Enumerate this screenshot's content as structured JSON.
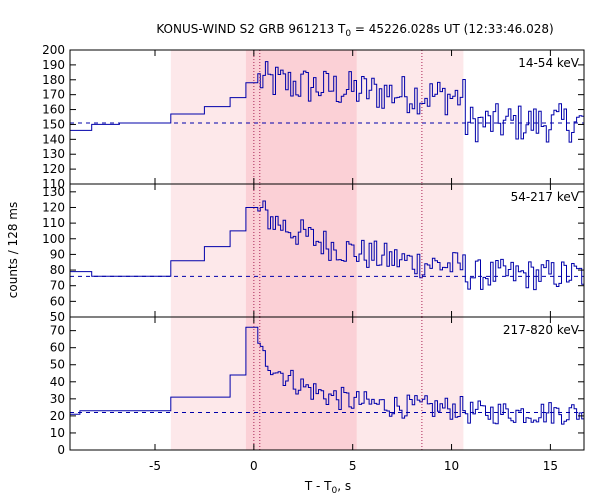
{
  "chart_data": {
    "type": "line",
    "title": "KONUS-WIND S2 GRB 961213 T",
    "title_sub": "0",
    "title_rest": " = 45226.028s UT (12:33:46.028)",
    "xlabel": "T - T",
    "xlabel_sub": "0",
    "xlabel_rest": ", s",
    "ylabel": "counts / 128 ms",
    "xlim": [
      -9.3,
      16.7
    ],
    "x_ticks": [
      -5,
      0,
      5,
      10,
      15
    ],
    "x_tick_labels": [
      "-5",
      "0",
      "5",
      "10",
      "15"
    ],
    "shaded_regions": [
      {
        "x": [
          -4.2,
          10.6
        ],
        "color": "#fde8ea"
      },
      {
        "x": [
          -0.4,
          5.2
        ],
        "color": "#fbd0d6"
      }
    ],
    "vertical_markers": [
      0.0,
      0.3,
      8.5
    ],
    "line_color": "#0000aa",
    "background_color": "#ffffff",
    "panels": [
      {
        "name": "14-54 keV",
        "ylim": [
          110,
          200
        ],
        "y_ticks": [
          110,
          120,
          130,
          140,
          150,
          160,
          170,
          180,
          190,
          200
        ],
        "y_tick_labels": [
          "110",
          "120",
          "130",
          "140",
          "150",
          "160",
          "170",
          "180",
          "190",
          "200"
        ],
        "background_level": 151,
        "steps": [
          [
            -9.3,
            146
          ],
          [
            -8.2,
            150
          ],
          [
            -6.8,
            151
          ],
          [
            -4.2,
            157
          ],
          [
            -2.5,
            162
          ],
          [
            -1.2,
            168
          ],
          [
            -0.4,
            178
          ]
        ],
        "fine_start": 0.2,
        "fine_dt": 0.128,
        "fine_base": 163,
        "fine_amp": 17,
        "fine_decay": 9,
        "fine_end": 151,
        "fine_noise": 13
      },
      {
        "name": "54-217 keV",
        "ylim": [
          50,
          135
        ],
        "y_ticks": [
          50,
          60,
          70,
          80,
          90,
          100,
          110,
          120,
          130
        ],
        "y_tick_labels": [
          "50",
          "60",
          "70",
          "80",
          "90",
          "100",
          "110",
          "120",
          "130"
        ],
        "background_level": 76,
        "steps": [
          [
            -9.3,
            79
          ],
          [
            -8.2,
            76
          ],
          [
            -4.2,
            86
          ],
          [
            -2.5,
            95
          ],
          [
            -1.2,
            105
          ],
          [
            -0.4,
            120
          ]
        ],
        "fine_start": 0.2,
        "fine_dt": 0.128,
        "fine_base": 78,
        "fine_amp": 40,
        "fine_decay": 4.5,
        "fine_end": 77,
        "fine_noise": 10
      },
      {
        "name": "217-820 keV",
        "ylim": [
          0,
          78
        ],
        "y_ticks": [
          0,
          10,
          20,
          30,
          40,
          50,
          60,
          70
        ],
        "y_tick_labels": [
          "0",
          "10",
          "20",
          "30",
          "40",
          "50",
          "60",
          "70"
        ],
        "background_level": 22,
        "steps": [
          [
            -9.3,
            21
          ],
          [
            -8.8,
            23
          ],
          [
            -4.2,
            31
          ],
          [
            -1.2,
            44
          ],
          [
            -0.4,
            72
          ]
        ],
        "fine_start": 0.2,
        "fine_dt": 0.128,
        "fine_base": 24,
        "fine_amp": 34,
        "fine_decay": 2.4,
        "fine_end": 22,
        "fine_noise": 7
      }
    ]
  }
}
